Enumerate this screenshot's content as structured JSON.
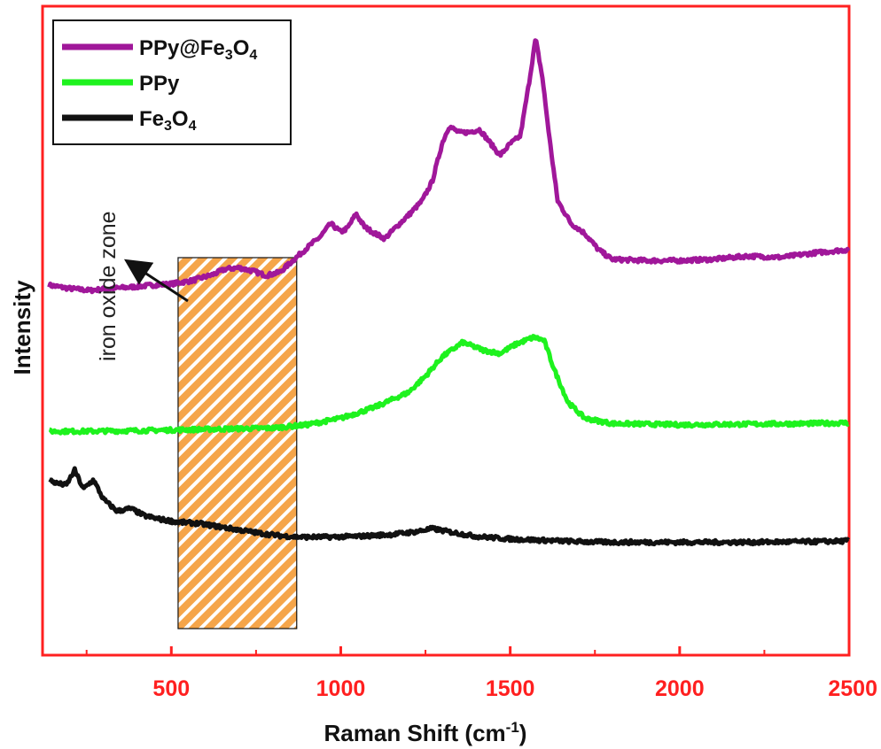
{
  "chart_data": {
    "type": "line",
    "xlabel": "Raman Shift (cm",
    "xlabel_sup": "-1",
    "xlabel_end": ")",
    "ylabel": "Intensity",
    "xlim": [
      120,
      2500
    ],
    "x_ticks": [
      "500",
      "1000",
      "1500",
      "2000",
      "2500"
    ],
    "y_ticks_shown": false,
    "legend": {
      "position": "top-left"
    },
    "annotation": {
      "text": "iron oxide zone",
      "x_range": [
        520,
        870
      ]
    },
    "colors": {
      "frame": "#ff2020",
      "zone_fill": "#f5a54a",
      "zone_hatch": "#ffffff"
    },
    "series": [
      {
        "name": "PPy@Fe",
        "name_sub1": "3",
        "name_mid": "O",
        "name_sub2": "4",
        "color": "#a0179a",
        "points": [
          [
            140,
            0.57
          ],
          [
            200,
            0.565
          ],
          [
            260,
            0.562
          ],
          [
            320,
            0.565
          ],
          [
            380,
            0.567
          ],
          [
            440,
            0.57
          ],
          [
            500,
            0.572
          ],
          [
            560,
            0.577
          ],
          [
            620,
            0.586
          ],
          [
            660,
            0.595
          ],
          [
            700,
            0.597
          ],
          [
            740,
            0.592
          ],
          [
            780,
            0.585
          ],
          [
            820,
            0.59
          ],
          [
            850,
            0.604
          ],
          [
            880,
            0.618
          ],
          [
            910,
            0.632
          ],
          [
            940,
            0.645
          ],
          [
            970,
            0.665
          ],
          [
            1000,
            0.652
          ],
          [
            1020,
            0.658
          ],
          [
            1045,
            0.68
          ],
          [
            1070,
            0.66
          ],
          [
            1100,
            0.65
          ],
          [
            1130,
            0.642
          ],
          [
            1160,
            0.658
          ],
          [
            1200,
            0.678
          ],
          [
            1240,
            0.7
          ],
          [
            1270,
            0.73
          ],
          [
            1300,
            0.79
          ],
          [
            1320,
            0.815
          ],
          [
            1350,
            0.805
          ],
          [
            1380,
            0.806
          ],
          [
            1410,
            0.81
          ],
          [
            1440,
            0.79
          ],
          [
            1470,
            0.77
          ],
          [
            1500,
            0.788
          ],
          [
            1530,
            0.8
          ],
          [
            1555,
            0.88
          ],
          [
            1575,
            0.95
          ],
          [
            1595,
            0.89
          ],
          [
            1615,
            0.8
          ],
          [
            1640,
            0.7
          ],
          [
            1680,
            0.665
          ],
          [
            1720,
            0.65
          ],
          [
            1760,
            0.625
          ],
          [
            1800,
            0.61
          ],
          [
            1900,
            0.608
          ],
          [
            2000,
            0.608
          ],
          [
            2100,
            0.61
          ],
          [
            2200,
            0.615
          ],
          [
            2300,
            0.613
          ],
          [
            2400,
            0.62
          ],
          [
            2500,
            0.625
          ]
        ]
      },
      {
        "name": "PPy",
        "color": "#1ef21e",
        "points": [
          [
            140,
            0.345
          ],
          [
            250,
            0.345
          ],
          [
            400,
            0.346
          ],
          [
            600,
            0.348
          ],
          [
            800,
            0.35
          ],
          [
            900,
            0.355
          ],
          [
            1000,
            0.365
          ],
          [
            1100,
            0.382
          ],
          [
            1200,
            0.405
          ],
          [
            1250,
            0.43
          ],
          [
            1300,
            0.46
          ],
          [
            1360,
            0.482
          ],
          [
            1420,
            0.47
          ],
          [
            1470,
            0.465
          ],
          [
            1520,
            0.48
          ],
          [
            1570,
            0.49
          ],
          [
            1600,
            0.485
          ],
          [
            1630,
            0.44
          ],
          [
            1670,
            0.39
          ],
          [
            1720,
            0.365
          ],
          [
            1800,
            0.357
          ],
          [
            2000,
            0.355
          ],
          [
            2200,
            0.356
          ],
          [
            2400,
            0.357
          ],
          [
            2500,
            0.358
          ]
        ]
      },
      {
        "name": "Fe",
        "name_sub1": "3",
        "name_mid": "O",
        "name_sub2": "4",
        "color": "#111111",
        "points": [
          [
            140,
            0.27
          ],
          [
            160,
            0.265
          ],
          [
            190,
            0.262
          ],
          [
            215,
            0.285
          ],
          [
            240,
            0.256
          ],
          [
            270,
            0.27
          ],
          [
            300,
            0.24
          ],
          [
            340,
            0.222
          ],
          [
            380,
            0.226
          ],
          [
            420,
            0.215
          ],
          [
            460,
            0.21
          ],
          [
            520,
            0.205
          ],
          [
            580,
            0.203
          ],
          [
            640,
            0.198
          ],
          [
            700,
            0.193
          ],
          [
            760,
            0.188
          ],
          [
            820,
            0.184
          ],
          [
            880,
            0.182
          ],
          [
            950,
            0.182
          ],
          [
            1050,
            0.183
          ],
          [
            1150,
            0.186
          ],
          [
            1220,
            0.19
          ],
          [
            1270,
            0.195
          ],
          [
            1320,
            0.19
          ],
          [
            1400,
            0.183
          ],
          [
            1500,
            0.179
          ],
          [
            1600,
            0.177
          ],
          [
            1700,
            0.175
          ],
          [
            1800,
            0.174
          ],
          [
            2000,
            0.174
          ],
          [
            2200,
            0.174
          ],
          [
            2400,
            0.175
          ],
          [
            2500,
            0.176
          ]
        ]
      }
    ]
  }
}
